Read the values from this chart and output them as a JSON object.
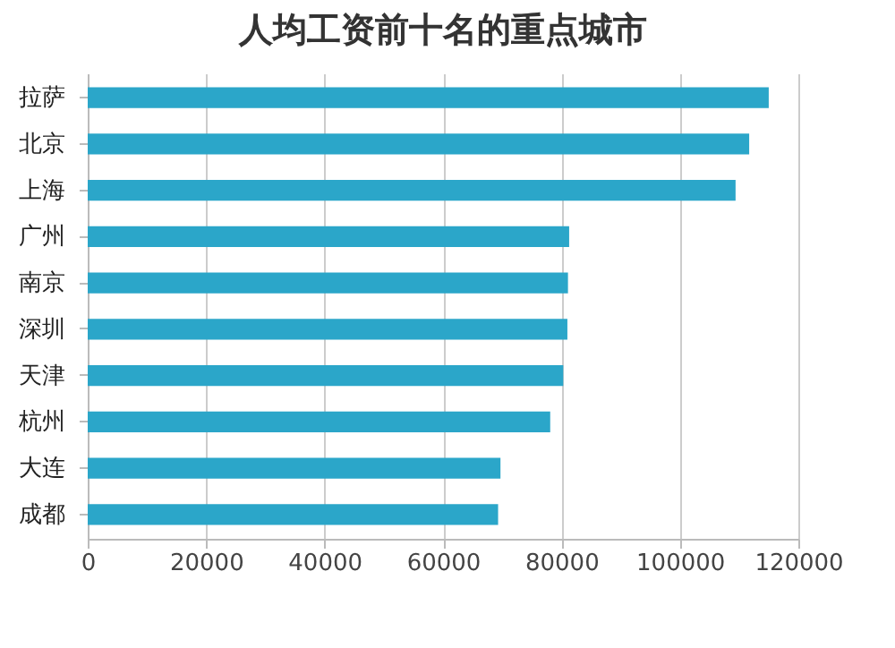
{
  "chart_data": {
    "type": "bar",
    "orientation": "horizontal",
    "title": "人均工资前十名的重点城市",
    "categories": [
      "拉萨",
      "北京",
      "上海",
      "广州",
      "南京",
      "深圳",
      "天津",
      "杭州",
      "大连",
      "成都"
    ],
    "values": [
      115000,
      111700,
      109400,
      81300,
      81100,
      81000,
      80300,
      78100,
      69700,
      69300
    ],
    "color": "#2ba6c9",
    "xlim": [
      0,
      120000
    ],
    "xticks": [
      0,
      20000,
      40000,
      60000,
      80000,
      100000,
      120000
    ],
    "grid": "x"
  }
}
